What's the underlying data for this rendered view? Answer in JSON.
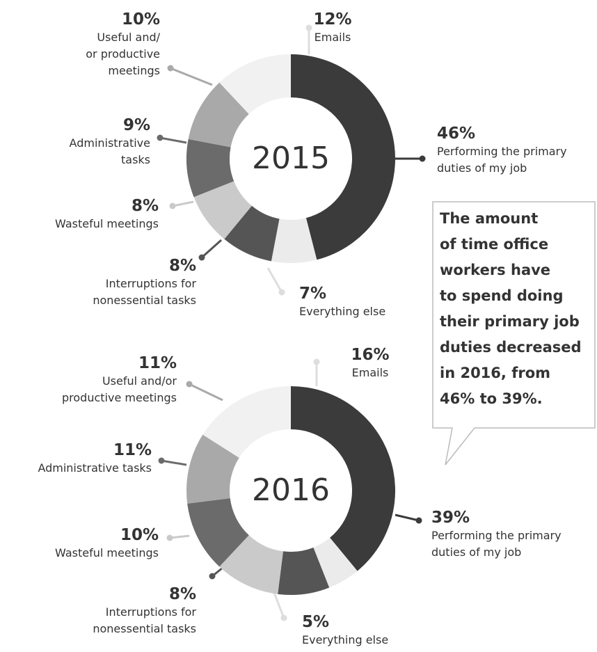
{
  "chart_data": [
    {
      "type": "pie",
      "title": "2015",
      "categories": [
        "Performing the primary\nduties of my job",
        "Everything else",
        "Interruptions for\nnonessential tasks",
        "Wasteful meetings",
        "Administrative\ntasks",
        "Useful and/\nor productive\nmeetings",
        "Emails"
      ],
      "values": [
        46,
        7,
        8,
        8,
        9,
        10,
        12
      ],
      "value_labels": [
        "46%",
        "7%",
        "8%",
        "8%",
        "9%",
        "10%",
        "12%"
      ],
      "colors": [
        "#3b3b3b",
        "#ebebeb",
        "#555555",
        "#cacaca",
        "#6b6b6b",
        "#a9a9a9",
        "#f1f1f1"
      ]
    },
    {
      "type": "pie",
      "title": "2016",
      "categories": [
        "Performing the primary\nduties of my job",
        "Everything else",
        "Interruptions for\nnonessential tasks",
        "Wasteful meetings",
        "Administrative tasks",
        "Useful and/or\nproductive meetings",
        "Emails"
      ],
      "values": [
        39,
        5,
        8,
        10,
        11,
        11,
        16
      ],
      "value_labels": [
        "39%",
        "5%",
        "8%",
        "10%",
        "11%",
        "11%",
        "16%"
      ],
      "colors": [
        "#3b3b3b",
        "#ebebeb",
        "#555555",
        "#cacaca",
        "#6b6b6b",
        "#a9a9a9",
        "#f1f1f1"
      ],
      "annotation": "The amount\nof time office\nworkers have\nto spend doing\ntheir primary job\nduties decreased\nin 2016, from\n46% to 39%."
    }
  ]
}
